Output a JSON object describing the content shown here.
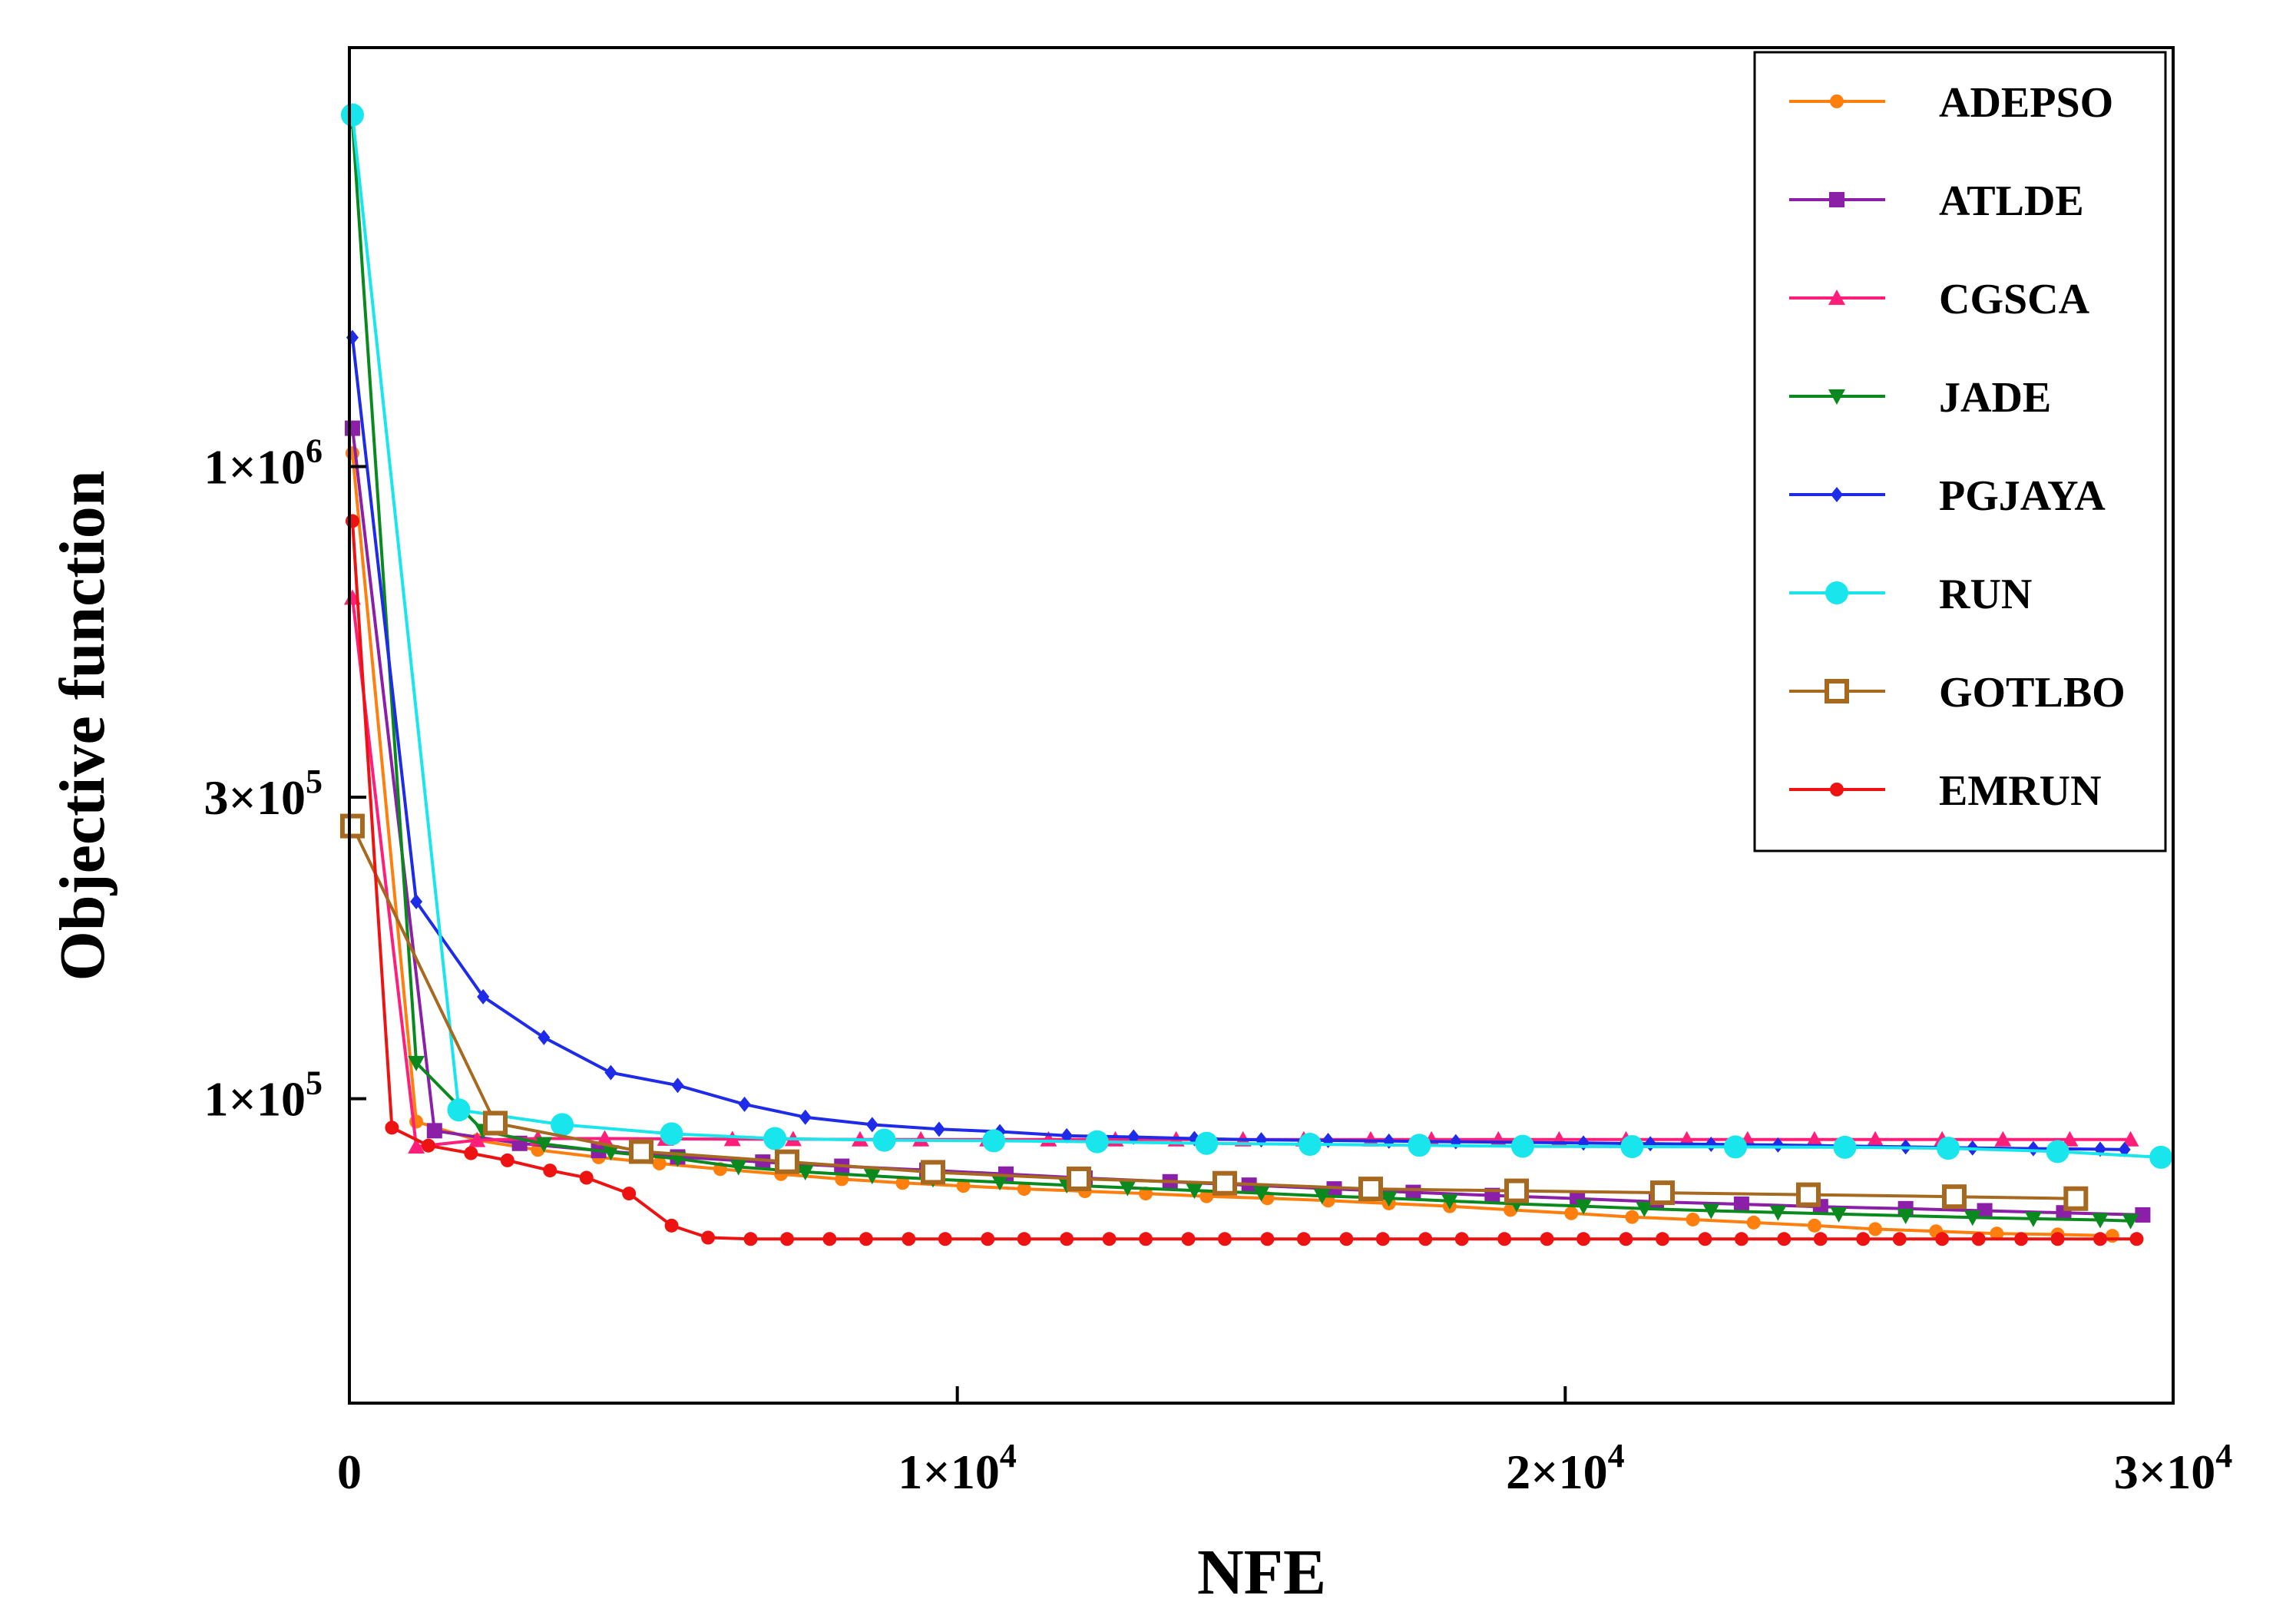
{
  "chart_data": {
    "type": "line",
    "yscale": "log",
    "xlabel": "NFE",
    "ylabel": "Objective function",
    "xlim": [
      0,
      30000
    ],
    "ylim": [
      33000,
      4600000
    ],
    "x_ticks": [
      {
        "value": 0,
        "label": "0"
      },
      {
        "value": 10000,
        "mant": "1×10",
        "exp": "4"
      },
      {
        "value": 20000,
        "mant": "2×10",
        "exp": "4"
      },
      {
        "value": 30000,
        "mant": "3×10",
        "exp": "4"
      }
    ],
    "y_ticks": [
      {
        "value": 100000,
        "mant": "1×10",
        "exp": "5"
      },
      {
        "value": 300000,
        "mant": "3×10",
        "exp": "5"
      },
      {
        "value": 1000000,
        "mant": "1×10",
        "exp": "6"
      }
    ],
    "legend_position": "top-right",
    "series": [
      {
        "name": "ADEPSO",
        "color": "#FF7F0E",
        "marker": "circle",
        "x": [
          50,
          1100,
          2100,
          3100,
          4100,
          5100,
          6100,
          7100,
          8100,
          9100,
          10100,
          11100,
          12100,
          13100,
          14100,
          15100,
          16100,
          17100,
          18100,
          19100,
          20100,
          21100,
          22100,
          23100,
          24100,
          25100,
          26100,
          27100,
          28100,
          29000
        ],
        "y": [
          1050000,
          92000,
          86000,
          83000,
          80800,
          79000,
          77400,
          76000,
          74600,
          73600,
          72800,
          72000,
          71400,
          70800,
          70100,
          69600,
          69000,
          68300,
          67600,
          66700,
          65900,
          65000,
          64400,
          63700,
          63000,
          62200,
          61700,
          61200,
          61000,
          60700
        ]
      },
      {
        "name": "ATLDE",
        "color": "#8B1FA8",
        "marker": "square",
        "x": [
          50,
          1400,
          2800,
          4100,
          5400,
          6800,
          8100,
          9500,
          10800,
          12100,
          13500,
          14800,
          16200,
          17500,
          18800,
          20200,
          21500,
          22900,
          24200,
          25600,
          26900,
          28200,
          29500
        ],
        "y": [
          1150000,
          89000,
          85000,
          82800,
          80900,
          79400,
          78200,
          77100,
          76000,
          74900,
          73900,
          73000,
          72000,
          71100,
          70300,
          69500,
          68700,
          68100,
          67500,
          67000,
          66500,
          66000,
          65500
        ]
      },
      {
        "name": "CGSCA",
        "color": "#FF1F7A",
        "marker": "triangle",
        "x": [
          50,
          1100,
          2100,
          3100,
          4200,
          5200,
          6300,
          7300,
          8400,
          9400,
          10500,
          11500,
          12600,
          13600,
          14700,
          15700,
          16800,
          17800,
          18900,
          19900,
          21000,
          22000,
          23000,
          24100,
          25100,
          26200,
          27200,
          28300,
          29300
        ],
        "y": [
          620000,
          84000,
          86000,
          86500,
          86500,
          86400,
          86300,
          86300,
          86200,
          86200,
          86200,
          86200,
          86200,
          86200,
          86200,
          86200,
          86200,
          86200,
          86200,
          86200,
          86200,
          86200,
          86200,
          86200,
          86200,
          86200,
          86200,
          86200,
          86200
        ]
      },
      {
        "name": "JADE",
        "color": "#0A8A1E",
        "marker": "triangle-down",
        "x": [
          50,
          1100,
          2200,
          3200,
          4300,
          5400,
          6400,
          7500,
          8600,
          9600,
          10700,
          11800,
          12800,
          13900,
          15000,
          16000,
          17100,
          18100,
          19200,
          20300,
          21300,
          22400,
          23500,
          24500,
          25600,
          26700,
          27700,
          28800,
          29300
        ],
        "y": [
          3500000,
          114000,
          89000,
          84800,
          82300,
          80400,
          78000,
          76600,
          75500,
          74600,
          73800,
          73000,
          72300,
          71600,
          70900,
          70200,
          69600,
          68900,
          68200,
          67600,
          67000,
          66500,
          66100,
          65700,
          65300,
          64900,
          64600,
          64300,
          64100
        ]
      },
      {
        "name": "PGJAYA",
        "color": "#1E2BE8",
        "marker": "diamond",
        "x": [
          50,
          1100,
          2200,
          3200,
          4300,
          5400,
          6500,
          7500,
          8600,
          9700,
          10700,
          11800,
          12900,
          13900,
          15000,
          16100,
          17100,
          18200,
          19300,
          20300,
          21400,
          22400,
          23500,
          24600,
          25600,
          26700,
          27700,
          28800,
          29200
        ],
        "y": [
          1600000,
          205000,
          145000,
          125000,
          110000,
          105000,
          98000,
          93500,
          91000,
          89500,
          88700,
          87400,
          87000,
          86500,
          86100,
          85900,
          85700,
          85500,
          85300,
          85100,
          84900,
          84700,
          84500,
          84200,
          83900,
          83600,
          83400,
          83200,
          83100
        ]
      },
      {
        "name": "RUN",
        "color": "#19E5EC",
        "marker": "circle",
        "x": [
          50,
          1800,
          3500,
          5300,
          7000,
          8800,
          10600,
          12300,
          14100,
          15800,
          17600,
          19300,
          21100,
          22800,
          24600,
          26300,
          28100,
          29800
        ],
        "y": [
          3600000,
          96000,
          91000,
          88000,
          86500,
          86000,
          85800,
          85500,
          85000,
          84700,
          84400,
          84100,
          84000,
          83900,
          83800,
          83500,
          82500,
          80800
        ]
      },
      {
        "name": "GOTLBO",
        "color": "#A6691F",
        "marker": "open-square",
        "x": [
          50,
          2400,
          4800,
          7200,
          9600,
          12000,
          14400,
          16800,
          19200,
          21600,
          24000,
          26400,
          28400
        ],
        "y": [
          270000,
          91500,
          82500,
          79500,
          76500,
          74700,
          73500,
          72000,
          71500,
          71000,
          70500,
          70000,
          69500
        ]
      },
      {
        "name": "EMRUN",
        "color": "#EE1313",
        "marker": "circle",
        "x": [
          50,
          700,
          1300,
          2000,
          2600,
          3300,
          3900,
          4600,
          5300,
          5900,
          6600,
          7200,
          7900,
          8500,
          9200,
          9800,
          10500,
          11100,
          11800,
          12500,
          13100,
          13800,
          14400,
          15100,
          15700,
          16400,
          17000,
          17700,
          18300,
          19000,
          19700,
          20300,
          21000,
          21600,
          22300,
          22900,
          23600,
          24200,
          24900,
          25500,
          26200,
          26800,
          27500,
          28100,
          28800,
          29400
        ],
        "y": [
          820000,
          90000,
          84300,
          82000,
          79900,
          77000,
          75000,
          70800,
          63000,
          60300,
          60000,
          60000,
          60000,
          60000,
          60000,
          60000,
          60000,
          60000,
          60000,
          60000,
          60000,
          60000,
          60000,
          60000,
          60000,
          60000,
          60000,
          60000,
          60000,
          60000,
          60000,
          60000,
          60000,
          60000,
          60000,
          60000,
          60000,
          60000,
          60000,
          60000,
          60000,
          60000,
          60000,
          60000,
          60000,
          60000
        ]
      }
    ]
  }
}
